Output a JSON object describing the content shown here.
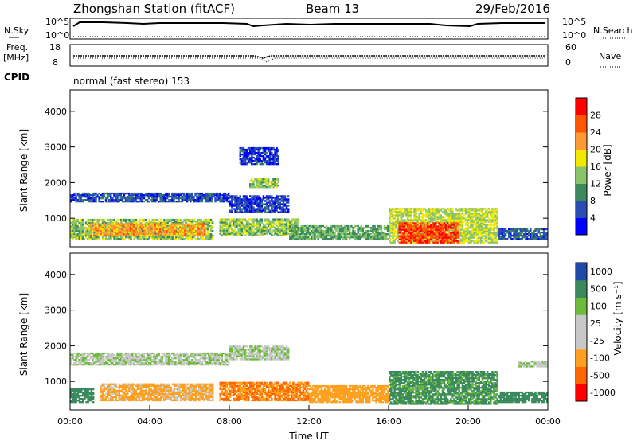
{
  "header": {
    "station": "Zhongshan Station (fitACF)",
    "beam": "Beam 13",
    "date": "29/Feb/2016"
  },
  "sky_panel": {
    "left_label": "N.Sky",
    "right_label": "N.Search",
    "left_ticks": [
      "10^5",
      "10^0"
    ],
    "right_ticks": [
      "10^5",
      "10^0"
    ]
  },
  "freq_panel": {
    "left_label_1": "Freq.",
    "left_label_2": "[MHz]",
    "right_label": "Nave",
    "left_ticks": [
      "18",
      "8"
    ],
    "right_ticks": [
      "60",
      "0"
    ]
  },
  "cpid": {
    "label": "CPID",
    "text": "normal (fast stereo) 153"
  },
  "colors": {
    "power": [
      "#0000ff",
      "#2a4db3",
      "#3a8a5e",
      "#88c46a",
      "#f2e800",
      "#ff9933",
      "#ff5500",
      "#ff0000"
    ],
    "velocity": [
      "#ff0000",
      "#ff6600",
      "#ffa020",
      "#c8c8c8",
      "#c8c8c8",
      "#6dbb3a",
      "#3a8a5e",
      "#1f4aa8"
    ]
  },
  "chart_data": [
    {
      "type": "heatmap",
      "name": "power",
      "xlabel": "",
      "ylabel": "Slant Range [km]",
      "yticks": [
        "1000",
        "2000",
        "3000",
        "4000"
      ],
      "ylim": [
        200,
        4600
      ],
      "colorbar": {
        "label": "Power [dB]",
        "ticks": [
          "4",
          "8",
          "12",
          "16",
          "20",
          "24",
          "28"
        ],
        "range": [
          0,
          32
        ]
      },
      "bands": [
        {
          "t0": 0.0,
          "t1": 7.2,
          "r0": 400,
          "r1": 1000,
          "v": 14
        },
        {
          "t0": 1.0,
          "t1": 6.8,
          "r0": 500,
          "r1": 850,
          "v": 22
        },
        {
          "t0": 0.0,
          "t1": 8.0,
          "r0": 1450,
          "r1": 1700,
          "v": 6
        },
        {
          "t0": 8.0,
          "t1": 11.0,
          "r0": 1150,
          "r1": 1650,
          "v": 5
        },
        {
          "t0": 9.0,
          "t1": 10.5,
          "r0": 1850,
          "r1": 2100,
          "v": 14
        },
        {
          "t0": 7.5,
          "t1": 11.5,
          "r0": 500,
          "r1": 1000,
          "v": 14
        },
        {
          "t0": 11.0,
          "t1": 16.0,
          "r0": 400,
          "r1": 800,
          "v": 12
        },
        {
          "t0": 16.0,
          "t1": 21.5,
          "r0": 300,
          "r1": 1300,
          "v": 16
        },
        {
          "t0": 16.5,
          "t1": 19.5,
          "r0": 300,
          "r1": 900,
          "v": 27
        },
        {
          "t0": 21.5,
          "t1": 24.0,
          "r0": 400,
          "r1": 700,
          "v": 7
        },
        {
          "t0": 8.5,
          "t1": 10.5,
          "r0": 2500,
          "r1": 3000,
          "v": 5
        }
      ]
    },
    {
      "type": "heatmap",
      "name": "velocity",
      "xlabel": "Time UT",
      "ylabel": "Slant Range [km]",
      "yticks": [
        "1000",
        "2000",
        "3000",
        "4000"
      ],
      "ylim": [
        200,
        4600
      ],
      "xticks": [
        "00:00",
        "04:00",
        "08:00",
        "12:00",
        "16:00",
        "20:00",
        "00:00"
      ],
      "xlim": [
        0,
        24
      ],
      "colorbar": {
        "label": "Velocity [m s⁻¹]",
        "ticks": [
          "-1000",
          "-500",
          "-100",
          "-25",
          "25",
          "100",
          "500",
          "1000"
        ]
      },
      "bands": [
        {
          "t0": 0.0,
          "t1": 8.0,
          "r0": 1450,
          "r1": 1800,
          "v": 0
        },
        {
          "t0": 8.0,
          "t1": 11.0,
          "r0": 1600,
          "r1": 2000,
          "v": 0
        },
        {
          "t0": 1.5,
          "t1": 7.2,
          "r0": 450,
          "r1": 950,
          "v": -150
        },
        {
          "t0": 7.5,
          "t1": 12.0,
          "r0": 450,
          "r1": 1000,
          "v": -500
        },
        {
          "t0": 12.0,
          "t1": 16.0,
          "r0": 400,
          "r1": 900,
          "v": -300
        },
        {
          "t0": 16.0,
          "t1": 21.5,
          "r0": 350,
          "r1": 1300,
          "v": 150
        },
        {
          "t0": 21.5,
          "t1": 24.0,
          "r0": 400,
          "r1": 700,
          "v": 400
        },
        {
          "t0": 0.0,
          "t1": 1.2,
          "r0": 400,
          "r1": 800,
          "v": 300
        },
        {
          "t0": 22.5,
          "t1": 24.0,
          "r0": 1400,
          "r1": 1600,
          "v": 0
        }
      ]
    }
  ]
}
